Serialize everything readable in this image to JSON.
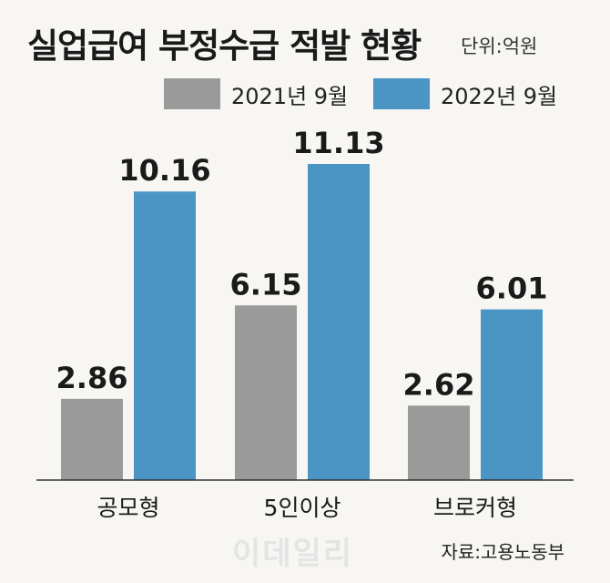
{
  "title": "실업급여 부정수급 적발 현황",
  "unit": "단위:억원",
  "source": "자료:고용노동부",
  "watermark": "이데일리",
  "colors": {
    "gray": "#9a9a9a",
    "blue": "#4a95c4",
    "background": "#f7f6f3"
  },
  "chart_data": {
    "type": "bar",
    "categories": [
      "공모형",
      "5인이상",
      "브로커형"
    ],
    "series": [
      {
        "name": "2021년 9월",
        "values": [
          2.86,
          6.15,
          2.62
        ],
        "labels": [
          "2.86",
          "6.15",
          "2.62"
        ]
      },
      {
        "name": "2022년 9월",
        "values": [
          10.16,
          11.13,
          6.01
        ],
        "labels": [
          "10.16",
          "11.13",
          "6.01"
        ]
      }
    ],
    "ylim": [
      0,
      11.13
    ],
    "grid": false,
    "legend": "top"
  }
}
